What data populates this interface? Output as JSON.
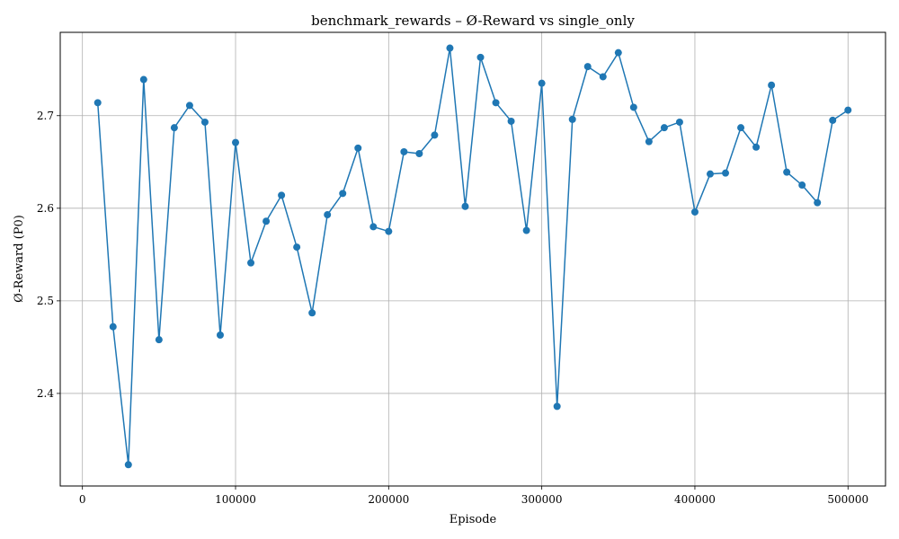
{
  "chart_data": {
    "type": "line",
    "title": "benchmark_rewards – Ø-Reward vs single_only",
    "xlabel": "Episode",
    "ylabel": "Ø-Reward (P0)",
    "xlim": [
      -14500,
      524500
    ],
    "ylim": [
      2.3,
      2.79
    ],
    "xticks": [
      0,
      100000,
      200000,
      300000,
      400000,
      500000
    ],
    "xtick_labels": [
      "0",
      "100000",
      "200000",
      "300000",
      "400000",
      "500000"
    ],
    "yticks": [
      2.4,
      2.5,
      2.6,
      2.7
    ],
    "ytick_labels": [
      "2.4",
      "2.5",
      "2.6",
      "2.7"
    ],
    "grid": true,
    "color": "#1f77b4",
    "series": [
      {
        "x": [
          10000,
          20000,
          30000,
          40000,
          50000,
          60000,
          70000,
          80000,
          90000,
          100000,
          110000,
          120000,
          130000,
          140000,
          150000,
          160000,
          170000,
          180000,
          190000,
          200000,
          210000,
          220000,
          230000,
          240000,
          250000,
          260000,
          270000,
          280000,
          290000,
          300000,
          310000,
          320000,
          330000,
          340000,
          350000,
          360000,
          370000,
          380000,
          390000,
          400000,
          410000,
          420000,
          430000,
          440000,
          450000,
          460000,
          470000,
          480000,
          490000,
          500000
        ],
        "y": [
          2.714,
          2.472,
          2.323,
          2.739,
          2.458,
          2.687,
          2.711,
          2.693,
          2.463,
          2.671,
          2.541,
          2.586,
          2.614,
          2.558,
          2.487,
          2.593,
          2.616,
          2.665,
          2.58,
          2.575,
          2.661,
          2.659,
          2.679,
          2.773,
          2.602,
          2.763,
          2.714,
          2.694,
          2.576,
          2.735,
          2.386,
          2.696,
          2.753,
          2.742,
          2.768,
          2.709,
          2.672,
          2.687,
          2.693,
          2.596,
          2.637,
          2.638,
          2.687,
          2.666,
          2.733,
          2.639,
          2.625,
          2.606,
          2.695,
          2.706
        ]
      }
    ]
  }
}
